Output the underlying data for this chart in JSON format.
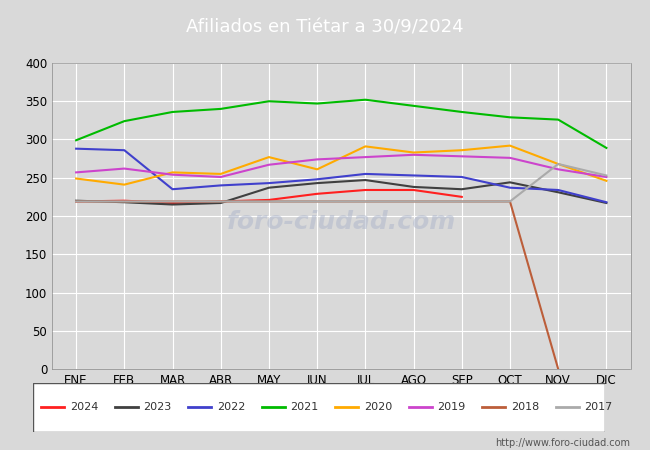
{
  "title": "Afiliados en Tiétar a 30/9/2024",
  "title_color": "#ffffff",
  "title_bg_color": "#5b9bd5",
  "ylim": [
    0,
    400
  ],
  "yticks": [
    0,
    50,
    100,
    150,
    200,
    250,
    300,
    350,
    400
  ],
  "months": [
    "ENE",
    "FEB",
    "MAR",
    "ABR",
    "MAY",
    "JUN",
    "JUL",
    "AGO",
    "SEP",
    "OCT",
    "NOV",
    "DIC"
  ],
  "bg_color": "#d9d9d9",
  "plot_bg_color": "#d9d9d9",
  "footer_url": "http://www.foro-ciudad.com",
  "series": [
    {
      "label": "2024",
      "color": "#ff2020",
      "data": [
        219,
        220,
        217,
        219,
        221,
        229,
        234,
        234,
        225,
        null,
        null,
        null
      ]
    },
    {
      "label": "2023",
      "color": "#404040",
      "data": [
        220,
        218,
        215,
        217,
        237,
        243,
        247,
        238,
        235,
        244,
        231,
        217
      ]
    },
    {
      "label": "2022",
      "color": "#4040cc",
      "data": [
        288,
        286,
        235,
        240,
        243,
        248,
        255,
        253,
        251,
        237,
        234,
        218
      ]
    },
    {
      "label": "2021",
      "color": "#00bb00",
      "data": [
        299,
        324,
        336,
        340,
        350,
        347,
        352,
        344,
        336,
        329,
        326,
        289
      ]
    },
    {
      "label": "2020",
      "color": "#ffaa00",
      "data": [
        249,
        241,
        257,
        255,
        277,
        261,
        291,
        283,
        286,
        292,
        268,
        246
      ]
    },
    {
      "label": "2019",
      "color": "#cc44cc",
      "data": [
        257,
        262,
        254,
        251,
        267,
        274,
        277,
        280,
        278,
        276,
        261,
        251
      ]
    },
    {
      "label": "2018",
      "color": "#bc5e3a",
      "data": [
        219,
        219,
        219,
        219,
        219,
        219,
        219,
        219,
        219,
        219,
        0,
        null
      ]
    },
    {
      "label": "2017",
      "color": "#aaaaaa",
      "data": [
        219,
        219,
        219,
        219,
        219,
        219,
        219,
        219,
        219,
        219,
        268,
        253
      ]
    }
  ]
}
